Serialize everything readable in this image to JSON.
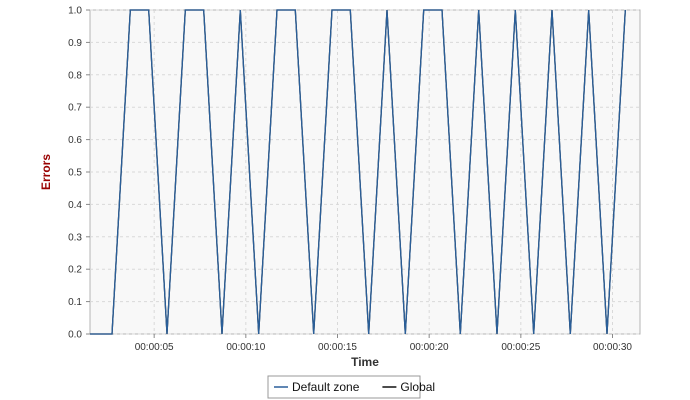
{
  "chart_data": {
    "type": "line",
    "title": "",
    "xlabel": "Time",
    "ylabel": "Errors",
    "x_unit": "seconds",
    "xlim": [
      1.5,
      31.5
    ],
    "ylim": [
      0.0,
      1.0
    ],
    "x_ticks": [
      5,
      10,
      15,
      20,
      25,
      30
    ],
    "x_tick_labels": [
      "00:00:05",
      "00:00:10",
      "00:00:15",
      "00:00:20",
      "00:00:25",
      "00:00:30"
    ],
    "y_ticks": [
      0.0,
      0.1,
      0.2,
      0.3,
      0.4,
      0.5,
      0.6,
      0.7,
      0.8,
      0.9,
      1.0
    ],
    "y_tick_labels": [
      "0.0",
      "0.1",
      "0.2",
      "0.3",
      "0.4",
      "0.5",
      "0.6",
      "0.7",
      "0.8",
      "0.9",
      "1.0"
    ],
    "grid": true,
    "legend_position": "bottom-center",
    "series": [
      {
        "name": "Default zone",
        "color": "#2a5f9a",
        "x": [
          1.5,
          2.7,
          3.7,
          4.7,
          5.7,
          6.7,
          7.7,
          8.7,
          9.7,
          10.7,
          11.7,
          12.7,
          13.7,
          14.7,
          15.7,
          16.7,
          17.7,
          18.7,
          19.7,
          20.7,
          21.7,
          22.7,
          23.7,
          24.7,
          25.7,
          26.7,
          27.7,
          28.7,
          29.7,
          30.7
        ],
        "values": [
          0.0,
          0.0,
          1.0,
          1.0,
          0.0,
          1.0,
          1.0,
          0.0,
          1.0,
          0.0,
          1.0,
          1.0,
          0.0,
          1.0,
          1.0,
          0.0,
          1.0,
          0.0,
          1.0,
          1.0,
          0.0,
          1.0,
          0.0,
          1.0,
          0.0,
          1.0,
          0.0,
          1.0,
          0.0,
          1.0
        ]
      },
      {
        "name": "Global",
        "color": "#111111",
        "x": [
          1.5,
          2.7,
          3.7,
          4.7,
          5.7,
          6.7,
          7.7,
          8.7,
          9.7,
          10.7,
          11.7,
          12.7,
          13.7,
          14.7,
          15.7,
          16.7,
          17.7,
          18.7,
          19.7,
          20.7,
          21.7,
          22.7,
          23.7,
          24.7,
          25.7,
          26.7,
          27.7,
          28.7,
          29.7,
          30.7
        ],
        "values": [
          0.0,
          0.0,
          1.0,
          1.0,
          0.0,
          1.0,
          1.0,
          0.0,
          1.0,
          0.0,
          1.0,
          1.0,
          0.0,
          1.0,
          1.0,
          0.0,
          1.0,
          0.0,
          1.0,
          1.0,
          0.0,
          1.0,
          0.0,
          1.0,
          0.0,
          1.0,
          0.0,
          1.0,
          0.0,
          1.0
        ]
      }
    ],
    "colors": {
      "ylabel": "#990000",
      "xlabel": "#333333",
      "plot_background": "#f8f8f8",
      "grid": "#d9d9d9"
    }
  }
}
